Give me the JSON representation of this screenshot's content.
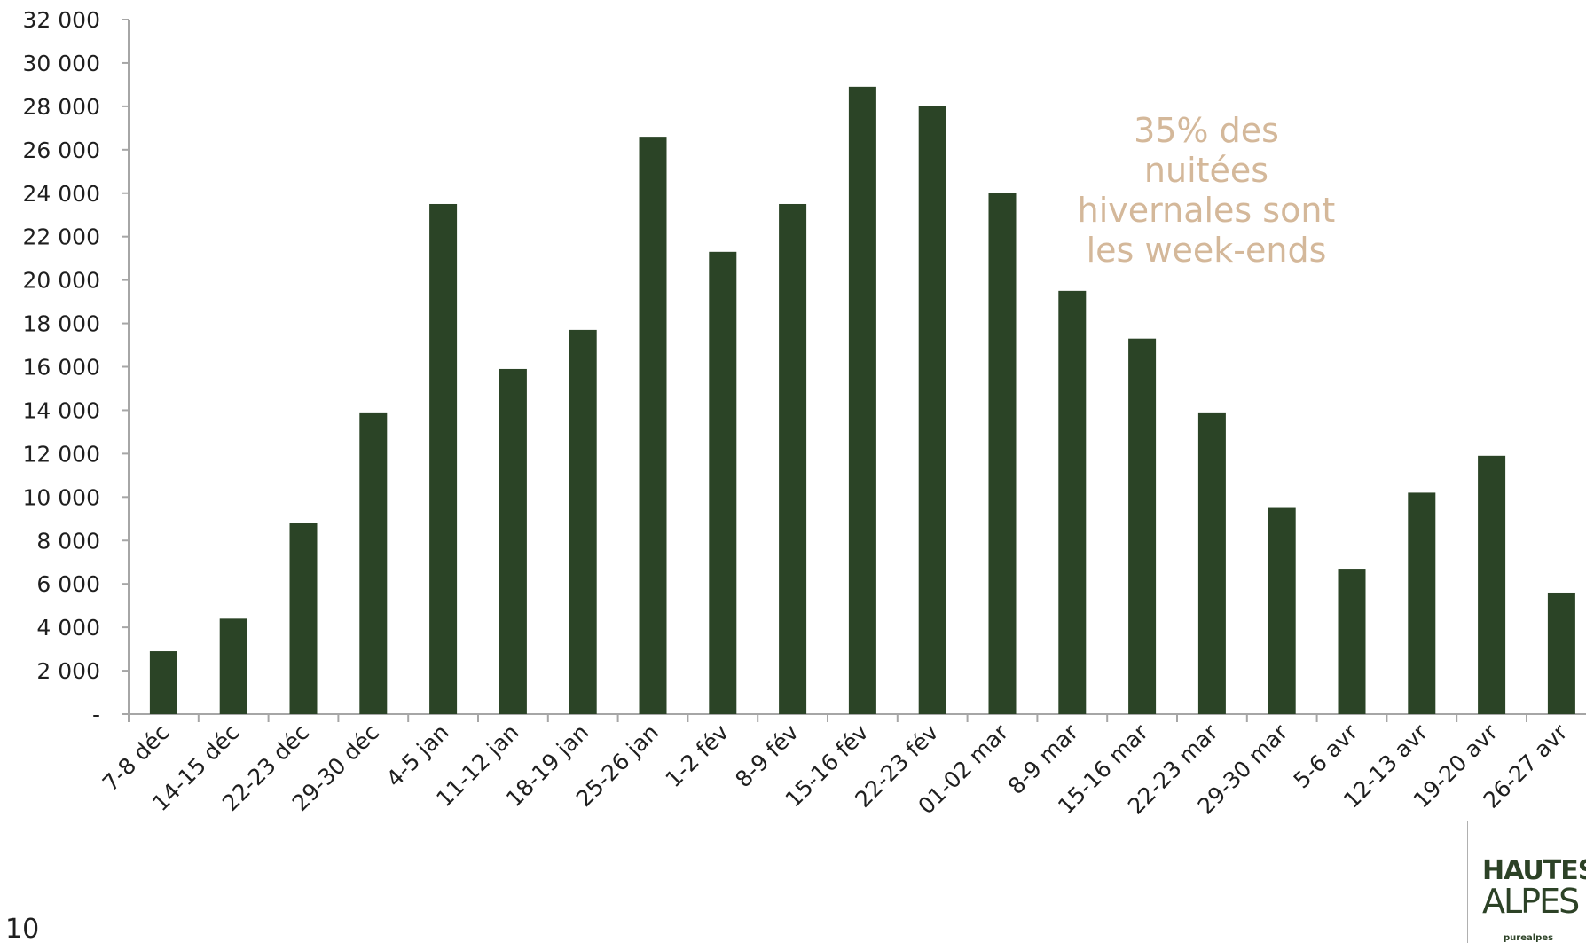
{
  "chart_data": {
    "type": "bar",
    "categories": [
      "7-8 déc",
      "14-15 déc",
      "22-23 déc",
      "29-30 déc",
      "4-5 jan",
      "11-12 jan",
      "18-19 jan",
      "25-26 jan",
      "1-2 fév",
      "8-9 fév",
      "15-16 fév",
      "22-23 fév",
      "01-02 mar",
      "8-9 mar",
      "15-16 mar",
      "22-23 mar",
      "29-30 mar",
      "5-6 avr",
      "12-13 avr",
      "19-20 avr",
      "26-27 avr"
    ],
    "series": [
      {
        "values": [
          2900,
          4400,
          8800,
          13900,
          23500,
          15900,
          17700,
          26600,
          21300,
          23500,
          28900,
          28000,
          24000,
          19500,
          17300,
          13900,
          9500,
          6700,
          10200,
          11900,
          5600
        ],
        "color": "#2b4426"
      }
    ],
    "ylim": [
      0,
      32000
    ],
    "yticks": [
      0,
      2000,
      4000,
      6000,
      8000,
      10000,
      12000,
      14000,
      16000,
      18000,
      20000,
      22000,
      24000,
      26000,
      28000,
      30000,
      32000
    ],
    "ytick_labels": [
      "-",
      "2 000",
      "4 000",
      "6 000",
      "8 000",
      "10 000",
      "12 000",
      "14 000",
      "16 000",
      "18 000",
      "20 000",
      "22 000",
      "24 000",
      "26 000",
      "28 000",
      "30 000",
      "32 000"
    ],
    "grid": false,
    "annotation": "35% des\nnuitées\nhivernales sont\nles week-ends",
    "annotation_color": "#d4b89a"
  },
  "page_number": "10",
  "logo": {
    "line1": "HAUTES",
    "line2": "ALPES",
    "sub": "purealpes",
    "color": "#2c4226"
  }
}
